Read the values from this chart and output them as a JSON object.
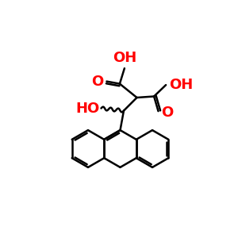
{
  "figsize": [
    3.0,
    3.0
  ],
  "dpi": 100,
  "xlim": [
    0,
    10
  ],
  "ylim": [
    0,
    10
  ],
  "bg": "#ffffff",
  "bond_color": "#000000",
  "red_color": "#ff0000",
  "lw": 1.8,
  "lw_thin": 1.4,
  "fs_large": 13,
  "fs_med": 11,
  "bl": 0.78
}
